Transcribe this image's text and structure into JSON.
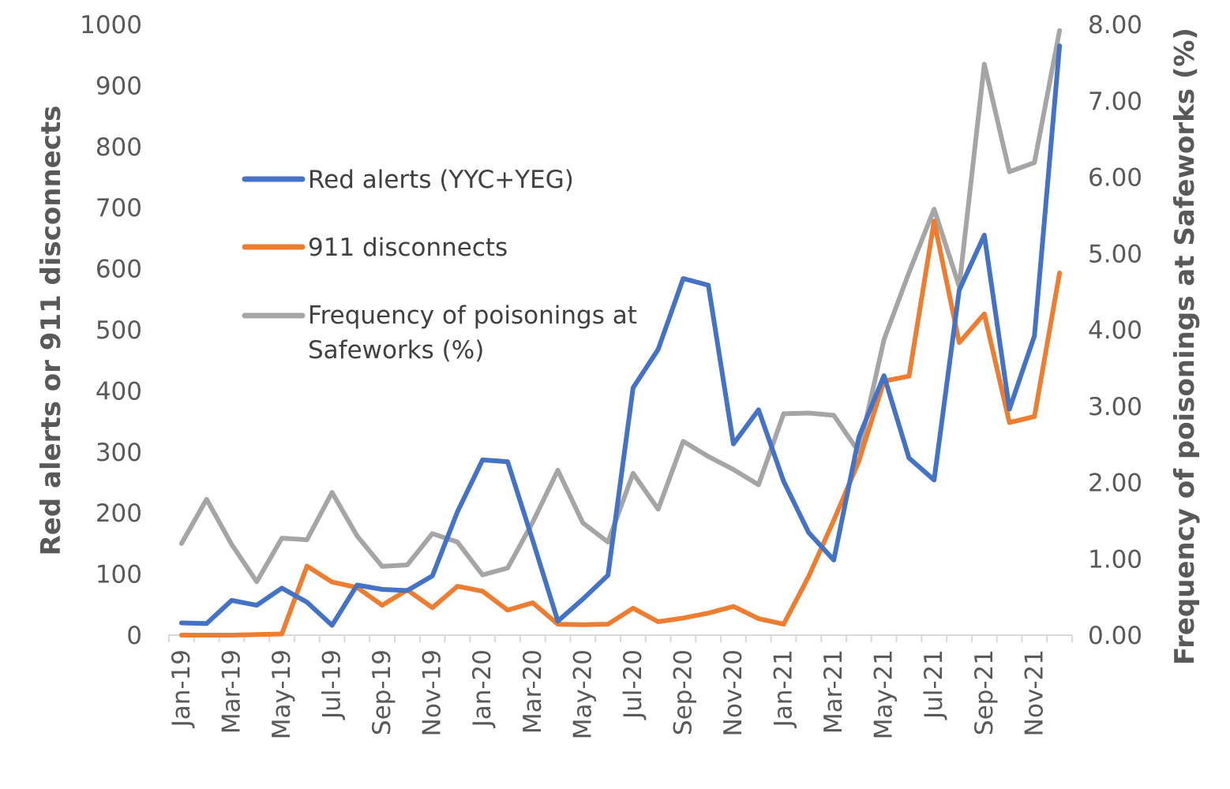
{
  "chart_data": {
    "type": "line",
    "title": "",
    "xlabel": "",
    "ylabel_left": "Red alerts or 911 disconnects",
    "ylabel_right": "Frequency of poisonings at Safeworks (%)",
    "ylim_left": [
      0,
      1000
    ],
    "ylim_right": [
      0,
      8
    ],
    "left_ticks": [
      "0",
      "100",
      "200",
      "300",
      "400",
      "500",
      "600",
      "700",
      "800",
      "900",
      "1000"
    ],
    "right_ticks": [
      "0.00",
      "1.00",
      "2.00",
      "3.00",
      "4.00",
      "5.00",
      "6.00",
      "7.00",
      "8.00"
    ],
    "x": [
      "Jan-19",
      "Feb-19",
      "Mar-19",
      "Apr-19",
      "May-19",
      "Jun-19",
      "Jul-19",
      "Aug-19",
      "Sep-19",
      "Oct-19",
      "Nov-19",
      "Dec-19",
      "Jan-20",
      "Feb-20",
      "Mar-20",
      "Apr-20",
      "May-20",
      "Jun-20",
      "Jul-20",
      "Aug-20",
      "Sep-20",
      "Oct-20",
      "Nov-20",
      "Dec-20",
      "Jan-21",
      "Feb-21",
      "Mar-21",
      "Apr-21",
      "May-21",
      "Jun-21",
      "Jul-21",
      "Aug-21",
      "Sep-21",
      "Oct-21",
      "Nov-21",
      "Dec-21"
    ],
    "x_tick_labels": [
      "Jan-19",
      "Mar-19",
      "May-19",
      "Jul-19",
      "Sep-19",
      "Nov-19",
      "Jan-20",
      "Mar-20",
      "May-20",
      "Jul-20",
      "Sep-20",
      "Nov-20",
      "Jan-21",
      "Mar-21",
      "May-21",
      "Jul-21",
      "Sep-21",
      "Nov-21"
    ],
    "legend_position": "upper-left",
    "series": [
      {
        "name": "Red alerts (YYC+YEG)",
        "axis": "left",
        "color": "#4472C4",
        "values": [
          20,
          19,
          57,
          49,
          77,
          54,
          16,
          82,
          75,
          73,
          97,
          202,
          287,
          284,
          155,
          23,
          59,
          98,
          405,
          468,
          584,
          573,
          313,
          369,
          252,
          168,
          123,
          324,
          425,
          290,
          254,
          565,
          655,
          370,
          490,
          965
        ]
      },
      {
        "name": "911 disconnects",
        "axis": "left",
        "color": "#ED7D31",
        "values": [
          0,
          0,
          0,
          1,
          2,
          113,
          87,
          78,
          49,
          74,
          45,
          80,
          72,
          41,
          53,
          18,
          17,
          18,
          44,
          22,
          28,
          36,
          47,
          27,
          18,
          96,
          188,
          285,
          416,
          424,
          678,
          479,
          526,
          348,
          358,
          593
        ]
      },
      {
        "name": "Frequency of poisonings at Safeworks (%)",
        "legend_lines": [
          "Frequency of poisonings at",
          "Safeworks (%)"
        ],
        "axis": "right",
        "color": "#A5A5A5",
        "values": [
          1.2,
          1.78,
          1.19,
          0.7,
          1.27,
          1.25,
          1.87,
          1.3,
          0.9,
          0.92,
          1.33,
          1.22,
          0.79,
          0.88,
          1.48,
          2.16,
          1.47,
          1.22,
          2.12,
          1.65,
          2.54,
          2.34,
          2.17,
          1.97,
          2.9,
          2.91,
          2.88,
          2.4,
          3.87,
          4.75,
          5.58,
          4.57,
          7.48,
          6.07,
          6.19,
          7.92
        ]
      }
    ]
  }
}
